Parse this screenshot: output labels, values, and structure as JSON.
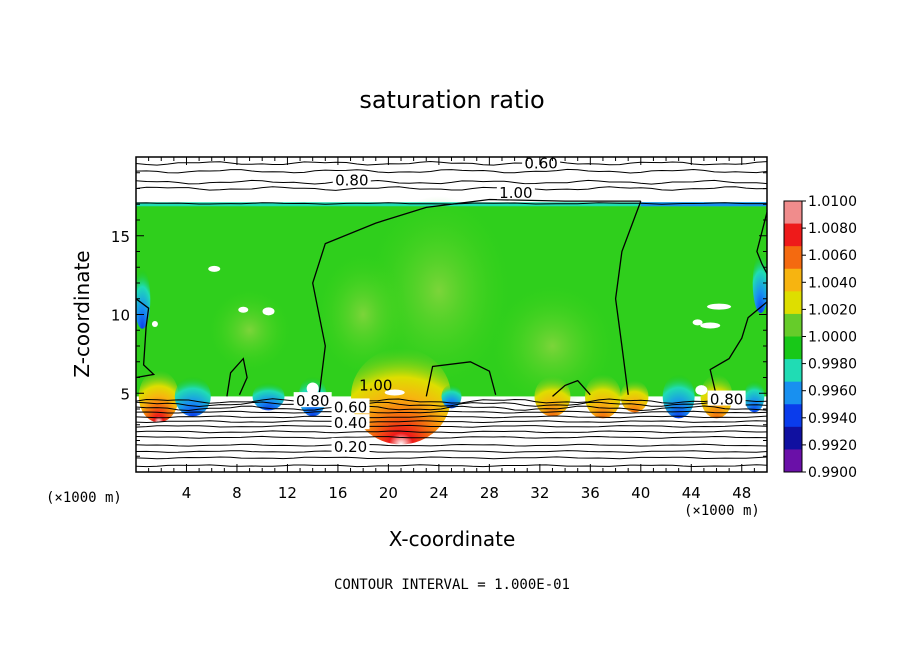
{
  "chart_data": {
    "type": "heatmap",
    "title": "saturation ratio",
    "xlabel": "X-coordinate",
    "ylabel": "Z-coordinate",
    "x_unit": "(×1000 m)",
    "note": "CONTOUR INTERVAL = 1.000E-01",
    "xlim": [
      0,
      50
    ],
    "ylim": [
      0,
      20
    ],
    "x_ticks": [
      4,
      8,
      12,
      16,
      20,
      24,
      28,
      32,
      36,
      40,
      44,
      48
    ],
    "y_ticks": [
      5,
      10,
      15
    ],
    "colorbar": {
      "values": [
        1.01,
        1.008,
        1.006,
        1.004,
        1.002,
        1.0,
        0.998,
        0.996,
        0.994,
        0.992,
        0.99
      ],
      "labels": [
        "1.0100",
        "1.0080",
        "1.0060",
        "1.0040",
        "1.0020",
        "1.0000",
        "0.9980",
        "0.9960",
        "0.9940",
        "0.9920",
        "0.9900"
      ],
      "colors": [
        "#f08c8c",
        "#ee1a1a",
        "#f46a10",
        "#f7b410",
        "#dede00",
        "#66cc2a",
        "#18c818",
        "#20dcb4",
        "#1890f0",
        "#0a3cec",
        "#1010a0",
        "#6a10a8"
      ]
    },
    "contour_labels": [
      {
        "text": "0.60",
        "x": 32.1,
        "z": 19.6
      },
      {
        "text": "0.80",
        "x": 17.1,
        "z": 18.5
      },
      {
        "text": "1.00",
        "x": 30.1,
        "z": 17.7
      },
      {
        "text": "1.00",
        "x": 19.0,
        "z": 5.5
      },
      {
        "text": "0.80",
        "x": 14.0,
        "z": 4.5
      },
      {
        "text": "0.60",
        "x": 17.0,
        "z": 4.1
      },
      {
        "text": "0.40",
        "x": 17.0,
        "z": 3.1
      },
      {
        "text": "0.20",
        "x": 17.0,
        "z": 1.6
      },
      {
        "text": "0.80",
        "x": 46.8,
        "z": 4.6
      }
    ],
    "cloud_layer": {
      "z_bottom": 4.8,
      "z_top": 17.0
    },
    "above_cloud_contours_z": [
      18.0,
      18.4,
      19.1,
      19.6
    ],
    "below_cloud_contours_z": [
      4.5,
      4.3,
      4.05,
      3.8,
      3.5,
      3.2,
      2.9,
      2.55,
      2.2,
      1.7,
      1.3,
      0.9,
      0.4
    ]
  }
}
